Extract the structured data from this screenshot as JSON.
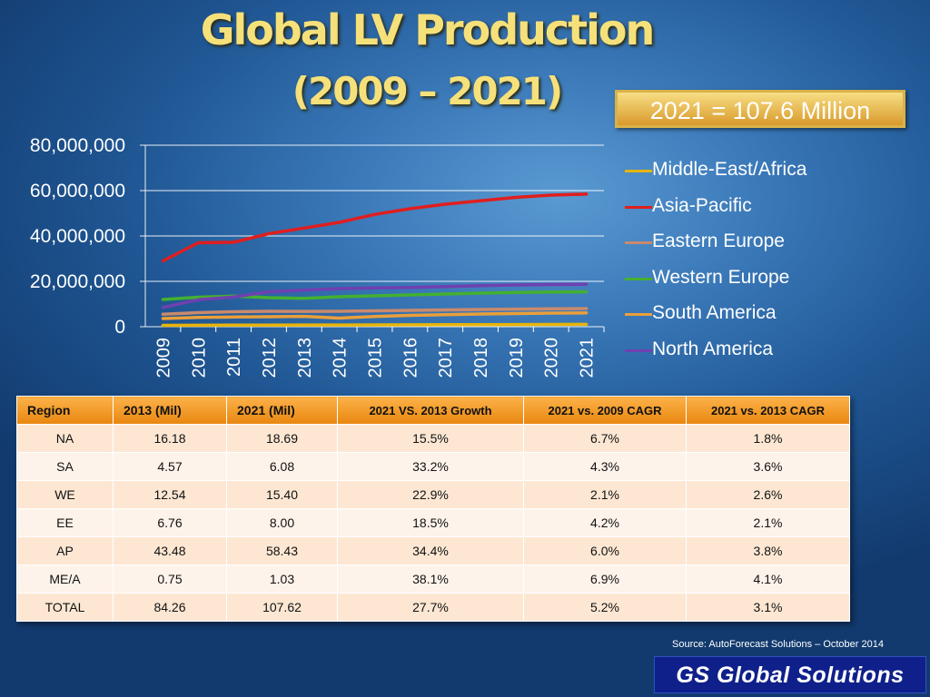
{
  "title_line1": "Global LV Production",
  "title_line2": "(2009 – 2021)",
  "callout": "2021 = 107.6 Million",
  "chart_data": {
    "type": "line",
    "title": "Global LV Production (2009 – 2021)",
    "x": [
      "2009",
      "2010",
      "2011",
      "2012",
      "2013",
      "2014",
      "2015",
      "2016",
      "2017",
      "2018",
      "2019",
      "2020",
      "2021"
    ],
    "ylim": [
      0,
      80000000
    ],
    "yticks": [
      {
        "value": 80000000,
        "label": "80,000,000"
      },
      {
        "value": 60000000,
        "label": "60,000,000"
      },
      {
        "value": 40000000,
        "label": "40,000,000"
      },
      {
        "value": 20000000,
        "label": "20,000,000"
      },
      {
        "value": 0,
        "label": "0"
      }
    ],
    "grid": true,
    "legend_position": "right",
    "series": [
      {
        "name": "Middle-East/Africa",
        "color": "#e8b40a",
        "values": [
          600000,
          650000,
          690000,
          720000,
          750000,
          780000,
          810000,
          850000,
          880000,
          920000,
          960000,
          1000000,
          1030000
        ]
      },
      {
        "name": "Asia-Pacific",
        "color": "#e01e1e",
        "values": [
          29000000,
          37000000,
          37200000,
          41000000,
          43480000,
          46000000,
          49500000,
          52000000,
          54000000,
          55500000,
          57000000,
          58000000,
          58430000
        ]
      },
      {
        "name": "Eastern Europe",
        "color": "#c98a6c",
        "values": [
          5500000,
          6200000,
          6600000,
          6800000,
          6760000,
          6800000,
          7000000,
          7200000,
          7400000,
          7600000,
          7750000,
          7900000,
          8000000
        ]
      },
      {
        "name": "Western Europe",
        "color": "#44b030",
        "values": [
          12000000,
          13000000,
          13500000,
          12800000,
          12540000,
          13200000,
          13600000,
          14000000,
          14400000,
          14800000,
          15100000,
          15300000,
          15400000
        ]
      },
      {
        "name": "South America",
        "color": "#ea9f3a",
        "values": [
          3600000,
          4100000,
          4300000,
          4400000,
          4570000,
          3800000,
          4500000,
          5000000,
          5300000,
          5600000,
          5800000,
          6000000,
          6080000
        ]
      },
      {
        "name": "North America",
        "color": "#7040b0",
        "values": [
          8500000,
          11900000,
          13100000,
          15400000,
          16180000,
          16800000,
          17100000,
          17300000,
          17700000,
          18100000,
          18400000,
          18600000,
          18690000
        ]
      }
    ]
  },
  "table": {
    "headers": [
      "Region",
      "2013 (Mil)",
      "2021 (Mil)",
      "2021 VS. 2013 Growth",
      "2021 vs. 2009 CAGR",
      "2021 vs. 2013 CAGR"
    ],
    "rows": [
      [
        "NA",
        "16.18",
        "18.69",
        "15.5%",
        "6.7%",
        "1.8%"
      ],
      [
        "SA",
        "4.57",
        "6.08",
        "33.2%",
        "4.3%",
        "3.6%"
      ],
      [
        "WE",
        "12.54",
        "15.40",
        "22.9%",
        "2.1%",
        "2.6%"
      ],
      [
        "EE",
        "6.76",
        "8.00",
        "18.5%",
        "4.2%",
        "2.1%"
      ],
      [
        "AP",
        "43.48",
        "58.43",
        "34.4%",
        "6.0%",
        "3.8%"
      ],
      [
        "ME/A",
        "0.75",
        "1.03",
        "38.1%",
        "6.9%",
        "4.1%"
      ],
      [
        "TOTAL",
        "84.26",
        "107.62",
        "27.7%",
        "5.2%",
        "3.1%"
      ]
    ]
  },
  "source": "Source: AutoForecast Solutions – October 2014",
  "brand": "GS Global Solutions"
}
